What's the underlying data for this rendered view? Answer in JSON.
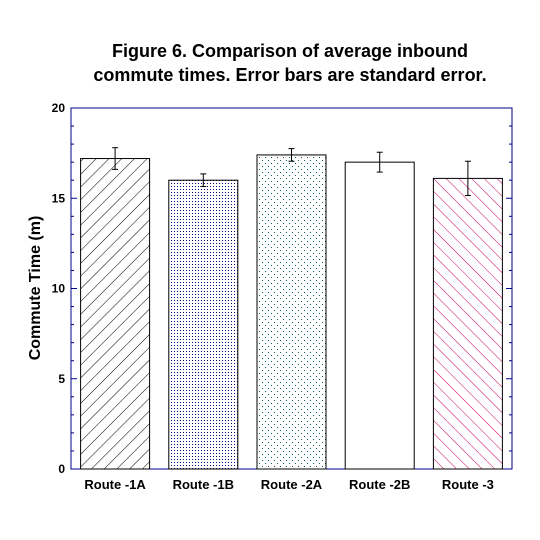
{
  "chart_data": {
    "type": "bar",
    "title_lines": [
      "Figure 6. Comparison of average inbound",
      "commute times. Error bars are standard error."
    ],
    "xlabel": "",
    "ylabel": "Commute Time (m)",
    "ylim": [
      0,
      20
    ],
    "yticks": [
      "0",
      "5",
      "10",
      "15",
      "20"
    ],
    "categories": [
      "Route -1A",
      "Route -1B",
      "Route -2A",
      "Route -2B",
      "Route -3"
    ],
    "values": [
      17.2,
      16.0,
      17.4,
      17.0,
      16.1
    ],
    "errors": [
      0.6,
      0.35,
      0.35,
      0.55,
      0.95
    ],
    "patterns": [
      "diagonal-hatch",
      "dense-dots",
      "sparse-dots",
      "plain",
      "red-back-diagonal-hatch"
    ],
    "colors": {
      "axis": "#00008b",
      "hatch": "#000000",
      "dots_dense": "#00008b",
      "dots_sparse": "#006060",
      "red_hatch": "#cc0066"
    }
  }
}
